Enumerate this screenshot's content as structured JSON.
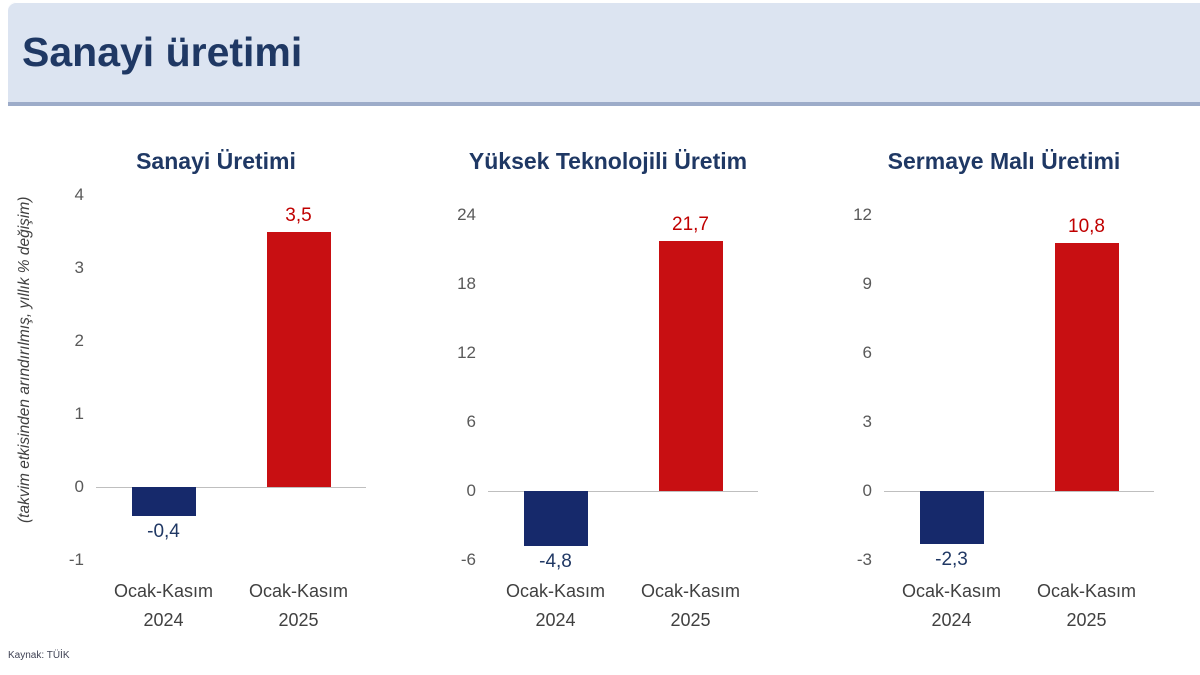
{
  "header": {
    "title": "Sanayi üretimi"
  },
  "axis_note": "(takvim etkisinden arındırılmış, yıllık % değişim)",
  "source": "Kaynak: TÜİK",
  "colors": {
    "header_bg": "#DCE4F1",
    "header_border": "#9DACC9",
    "title_navy": "#1F3864",
    "bar_navy": "#16296B",
    "bar_red": "#C80F12",
    "value_label_red": "#C00000",
    "value_label_navy": "#203864",
    "tick_gray": "#595959",
    "zero_line": "#BFBFBF"
  },
  "chart_data": [
    {
      "type": "bar",
      "title": "Sanayi Üretimi",
      "categories": [
        "Ocak-Kasım 2024",
        "Ocak-Kasım 2025"
      ],
      "category_lines": [
        [
          "Ocak-Kasım",
          "2024"
        ],
        [
          "Ocak-Kasım",
          "2025"
        ]
      ],
      "values": [
        -0.4,
        3.5
      ],
      "value_labels": [
        "-0,4",
        "3,5"
      ],
      "yticks": [
        4,
        3,
        2,
        1,
        0,
        -1
      ],
      "ylim": [
        -1,
        4
      ],
      "series_colors": [
        "#16296B",
        "#C80F12"
      ],
      "legend": "none",
      "grid": "off"
    },
    {
      "type": "bar",
      "title": "Yüksek Teknolojili Üretim",
      "categories": [
        "Ocak-Kasım 2024",
        "Ocak-Kasım 2025"
      ],
      "category_lines": [
        [
          "Ocak-Kasım",
          "2024"
        ],
        [
          "Ocak-Kasım",
          "2025"
        ]
      ],
      "values": [
        -4.8,
        21.7
      ],
      "value_labels": [
        "-4,8",
        "21,7"
      ],
      "yticks": [
        24,
        18,
        12,
        6,
        0,
        -6
      ],
      "ylim": [
        -6,
        24
      ],
      "series_colors": [
        "#16296B",
        "#C80F12"
      ],
      "legend": "none",
      "grid": "off"
    },
    {
      "type": "bar",
      "title": "Sermaye Malı Üretimi",
      "categories": [
        "Ocak-Kasım 2024",
        "Ocak-Kasım 2025"
      ],
      "category_lines": [
        [
          "Ocak-Kasım",
          "2024"
        ],
        [
          "Ocak-Kasım",
          "2025"
        ]
      ],
      "values": [
        -2.3,
        10.8
      ],
      "value_labels": [
        "-2,3",
        "10,8"
      ],
      "yticks": [
        12,
        9,
        6,
        3,
        0,
        -3
      ],
      "ylim": [
        -3,
        12
      ],
      "series_colors": [
        "#16296B",
        "#C80F12"
      ],
      "legend": "none",
      "grid": "off"
    }
  ]
}
